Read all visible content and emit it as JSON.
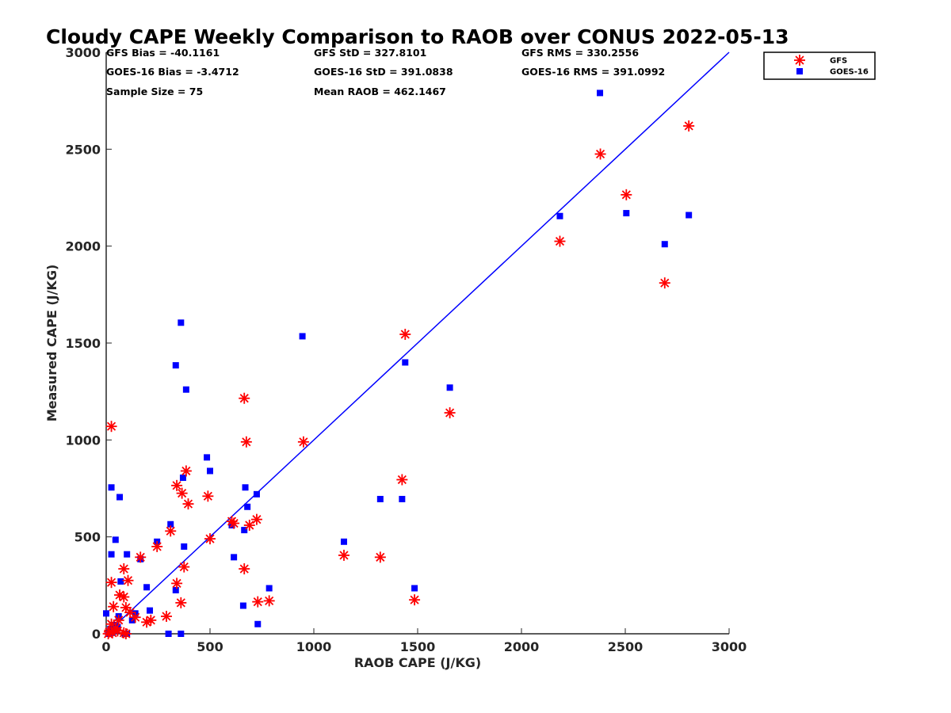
{
  "chart_data": {
    "type": "scatter",
    "title": "Cloudy CAPE Weekly Comparison to RAOB over CONUS 2022-05-13",
    "xlabel": "RAOB CAPE (J/KG)",
    "ylabel": "Measured CAPE (J/KG)",
    "xlim": [
      0,
      3000
    ],
    "ylim": [
      0,
      3000
    ],
    "xticks": [
      0,
      500,
      1000,
      1500,
      2000,
      2500,
      3000
    ],
    "yticks": [
      0,
      500,
      1000,
      1500,
      2000,
      2500,
      3000
    ],
    "grid": false,
    "legend_position": "top-right outside",
    "reference_line": {
      "x": [
        0,
        3000
      ],
      "y": [
        0,
        3000
      ],
      "color": "#0000ff"
    },
    "stats": [
      [
        "GFS Bias = -40.1161",
        "GFS StD = 327.8101",
        "GFS RMS = 330.2556"
      ],
      [
        "GOES-16 Bias = -3.4712",
        "GOES-16 StD = 391.0838",
        "GOES-16 RMS = 391.0992"
      ],
      [
        "Sample Size = 75",
        "Mean RAOB = 462.1467",
        ""
      ]
    ],
    "series": [
      {
        "name": "GFS",
        "marker": "asterisk",
        "color": "#ff0000",
        "points": [
          [
            2806,
            2620
          ],
          [
            2380,
            2475
          ],
          [
            2505,
            2265
          ],
          [
            2185,
            2025
          ],
          [
            2690,
            1810
          ],
          [
            1440,
            1545
          ],
          [
            1655,
            1140
          ],
          [
            1425,
            795
          ],
          [
            1145,
            405
          ],
          [
            1320,
            395
          ],
          [
            1485,
            175
          ],
          [
            950,
            990
          ],
          [
            665,
            1215
          ],
          [
            675,
            990
          ],
          [
            25,
            1070
          ],
          [
            500,
            490
          ],
          [
            490,
            710
          ],
          [
            385,
            840
          ],
          [
            395,
            670
          ],
          [
            340,
            765
          ],
          [
            365,
            725
          ],
          [
            375,
            345
          ],
          [
            310,
            530
          ],
          [
            340,
            260
          ],
          [
            360,
            160
          ],
          [
            290,
            90
          ],
          [
            245,
            450
          ],
          [
            165,
            395
          ],
          [
            605,
            580
          ],
          [
            615,
            570
          ],
          [
            725,
            590
          ],
          [
            690,
            560
          ],
          [
            665,
            335
          ],
          [
            730,
            165
          ],
          [
            785,
            170
          ],
          [
            85,
            335
          ],
          [
            105,
            275
          ],
          [
            65,
            200
          ],
          [
            85,
            190
          ],
          [
            25,
            265
          ],
          [
            35,
            140
          ],
          [
            95,
            135
          ],
          [
            115,
            110
          ],
          [
            140,
            85
          ],
          [
            195,
            60
          ],
          [
            215,
            70
          ],
          [
            60,
            70
          ],
          [
            25,
            50
          ],
          [
            45,
            30
          ],
          [
            15,
            10
          ],
          [
            55,
            15
          ],
          [
            85,
            5
          ],
          [
            95,
            0
          ],
          [
            10,
            0
          ],
          [
            30,
            5
          ]
        ]
      },
      {
        "name": "GOES-16",
        "marker": "square",
        "color": "#0000ff",
        "points": [
          [
            2378,
            2790
          ],
          [
            2185,
            2155
          ],
          [
            2505,
            2170
          ],
          [
            2690,
            2010
          ],
          [
            2806,
            2160
          ],
          [
            1655,
            1270
          ],
          [
            1440,
            1400
          ],
          [
            945,
            1535
          ],
          [
            1320,
            695
          ],
          [
            1425,
            695
          ],
          [
            1145,
            475
          ],
          [
            1485,
            235
          ],
          [
            360,
            1605
          ],
          [
            335,
            1385
          ],
          [
            385,
            1260
          ],
          [
            485,
            910
          ],
          [
            500,
            840
          ],
          [
            370,
            805
          ],
          [
            670,
            755
          ],
          [
            725,
            720
          ],
          [
            680,
            655
          ],
          [
            605,
            560
          ],
          [
            665,
            535
          ],
          [
            615,
            395
          ],
          [
            660,
            145
          ],
          [
            730,
            50
          ],
          [
            785,
            235
          ],
          [
            310,
            565
          ],
          [
            375,
            450
          ],
          [
            245,
            475
          ],
          [
            165,
            385
          ],
          [
            335,
            225
          ],
          [
            195,
            240
          ],
          [
            210,
            120
          ],
          [
            140,
            105
          ],
          [
            125,
            70
          ],
          [
            100,
            410
          ],
          [
            70,
            270
          ],
          [
            65,
            705
          ],
          [
            25,
            755
          ],
          [
            25,
            410
          ],
          [
            45,
            485
          ],
          [
            60,
            90
          ],
          [
            35,
            45
          ],
          [
            20,
            25
          ],
          [
            45,
            15
          ],
          [
            0,
            105
          ],
          [
            10,
            0
          ],
          [
            90,
            0
          ],
          [
            300,
            0
          ],
          [
            360,
            0
          ],
          [
            100,
            0
          ],
          [
            30,
            5
          ],
          [
            55,
            35
          ]
        ]
      }
    ]
  }
}
